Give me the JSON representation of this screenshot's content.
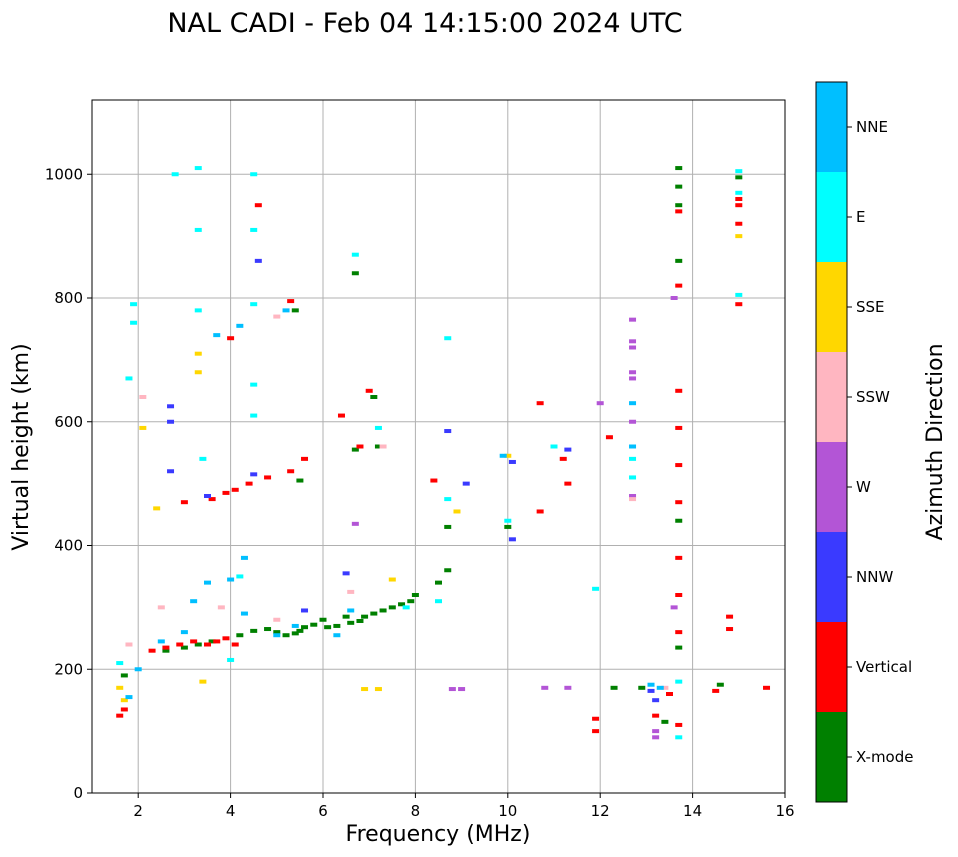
{
  "chart_data": {
    "type": "scatter",
    "title": "NAL CADI - Feb 04 14:15:00 2024 UTC",
    "xlabel": "Frequency (MHz)",
    "ylabel": "Virtual height (km)",
    "xlim": [
      1,
      16
    ],
    "ylim": [
      0,
      1120
    ],
    "xticks": [
      2,
      4,
      6,
      8,
      10,
      12,
      14,
      16
    ],
    "yticks": [
      0,
      200,
      400,
      600,
      800,
      1000
    ],
    "grid": true,
    "colorbar": {
      "label": "Azimuth Direction",
      "categories": [
        {
          "name": "X-mode",
          "color": "#008000"
        },
        {
          "name": "Vertical",
          "color": "#ff0000"
        },
        {
          "name": "NNW",
          "color": "#3a3aff"
        },
        {
          "name": "W",
          "color": "#b355d6"
        },
        {
          "name": "SSW",
          "color": "#ffb6c1"
        },
        {
          "name": "SSE",
          "color": "#ffd700"
        },
        {
          "name": "E",
          "color": "#00ffff"
        },
        {
          "name": "NNE",
          "color": "#00bfff"
        }
      ]
    },
    "series": [
      {
        "name": "X-mode",
        "points": [
          [
            1.7,
            190
          ],
          [
            3.3,
            240
          ],
          [
            4.2,
            255
          ],
          [
            4.5,
            262
          ],
          [
            4.8,
            265
          ],
          [
            5.0,
            260
          ],
          [
            5.2,
            255
          ],
          [
            5.4,
            258
          ],
          [
            5.5,
            262
          ],
          [
            5.6,
            268
          ],
          [
            5.8,
            272
          ],
          [
            6.1,
            268
          ],
          [
            6.3,
            270
          ],
          [
            6.6,
            275
          ],
          [
            6.8,
            278
          ],
          [
            6.9,
            285
          ],
          [
            7.1,
            290
          ],
          [
            7.3,
            295
          ],
          [
            7.5,
            300
          ],
          [
            7.7,
            305
          ],
          [
            7.9,
            310
          ],
          [
            8.0,
            320
          ],
          [
            8.5,
            340
          ],
          [
            8.7,
            360
          ],
          [
            8.7,
            430
          ],
          [
            10.0,
            430
          ],
          [
            5.5,
            505
          ],
          [
            6.7,
            555
          ],
          [
            7.2,
            560
          ],
          [
            7.1,
            640
          ],
          [
            5.4,
            780
          ],
          [
            6.7,
            840
          ],
          [
            12.3,
            170
          ],
          [
            12.9,
            170
          ],
          [
            13.4,
            115
          ],
          [
            13.7,
            235
          ],
          [
            13.7,
            440
          ],
          [
            13.7,
            860
          ],
          [
            13.7,
            950
          ],
          [
            13.7,
            980
          ],
          [
            13.7,
            1010
          ],
          [
            14.6,
            175
          ],
          [
            15.0,
            995
          ],
          [
            2.6,
            230
          ],
          [
            3.0,
            235
          ],
          [
            3.6,
            245
          ],
          [
            6.0,
            280
          ],
          [
            6.5,
            285
          ]
        ]
      },
      {
        "name": "Vertical",
        "points": [
          [
            1.6,
            125
          ],
          [
            1.7,
            135
          ],
          [
            2.3,
            230
          ],
          [
            2.6,
            235
          ],
          [
            2.9,
            240
          ],
          [
            3.2,
            245
          ],
          [
            3.5,
            240
          ],
          [
            3.7,
            245
          ],
          [
            3.9,
            250
          ],
          [
            4.1,
            240
          ],
          [
            3.0,
            470
          ],
          [
            3.6,
            475
          ],
          [
            3.9,
            485
          ],
          [
            4.1,
            490
          ],
          [
            4.4,
            500
          ],
          [
            4.8,
            510
          ],
          [
            5.3,
            520
          ],
          [
            5.6,
            540
          ],
          [
            6.4,
            610
          ],
          [
            6.8,
            560
          ],
          [
            7.0,
            650
          ],
          [
            4.0,
            735
          ],
          [
            5.3,
            795
          ],
          [
            8.4,
            505
          ],
          [
            10.7,
            630
          ],
          [
            10.7,
            455
          ],
          [
            11.2,
            540
          ],
          [
            11.3,
            500
          ],
          [
            11.9,
            120
          ],
          [
            11.9,
            100
          ],
          [
            12.2,
            575
          ],
          [
            13.2,
            125
          ],
          [
            13.5,
            160
          ],
          [
            13.7,
            110
          ],
          [
            13.7,
            260
          ],
          [
            13.7,
            320
          ],
          [
            13.7,
            380
          ],
          [
            13.7,
            470
          ],
          [
            13.7,
            530
          ],
          [
            13.7,
            590
          ],
          [
            13.7,
            650
          ],
          [
            13.7,
            820
          ],
          [
            13.7,
            940
          ],
          [
            14.5,
            165
          ],
          [
            14.8,
            265
          ],
          [
            14.8,
            285
          ],
          [
            15.0,
            790
          ],
          [
            15.0,
            920
          ],
          [
            15.0,
            950
          ],
          [
            15.0,
            960
          ],
          [
            15.6,
            170
          ],
          [
            4.6,
            950
          ]
        ]
      },
      {
        "name": "NNW",
        "points": [
          [
            2.7,
            625
          ],
          [
            2.7,
            600
          ],
          [
            3.5,
            480
          ],
          [
            4.5,
            515
          ],
          [
            5.6,
            295
          ],
          [
            6.5,
            355
          ],
          [
            8.7,
            585
          ],
          [
            9.1,
            500
          ],
          [
            10.1,
            535
          ],
          [
            10.1,
            410
          ],
          [
            11.3,
            555
          ],
          [
            13.2,
            150
          ],
          [
            13.1,
            165
          ],
          [
            4.6,
            860
          ],
          [
            2.7,
            520
          ]
        ]
      },
      {
        "name": "W",
        "points": [
          [
            8.8,
            168
          ],
          [
            9.0,
            168
          ],
          [
            10.8,
            170
          ],
          [
            11.3,
            170
          ],
          [
            12.7,
            765
          ],
          [
            12.7,
            730
          ],
          [
            12.7,
            720
          ],
          [
            12.7,
            680
          ],
          [
            12.7,
            670
          ],
          [
            12.7,
            600
          ],
          [
            12.7,
            480
          ],
          [
            13.2,
            100
          ],
          [
            13.2,
            90
          ],
          [
            13.6,
            300
          ],
          [
            13.6,
            800
          ],
          [
            6.7,
            435
          ],
          [
            12.0,
            630
          ]
        ]
      },
      {
        "name": "SSW",
        "points": [
          [
            1.8,
            240
          ],
          [
            2.1,
            640
          ],
          [
            2.5,
            300
          ],
          [
            3.8,
            300
          ],
          [
            5.0,
            280
          ],
          [
            6.6,
            325
          ],
          [
            7.3,
            560
          ],
          [
            12.7,
            475
          ],
          [
            13.4,
            170
          ],
          [
            5.0,
            770
          ]
        ]
      },
      {
        "name": "SSE",
        "points": [
          [
            1.6,
            170
          ],
          [
            1.7,
            150
          ],
          [
            2.1,
            590
          ],
          [
            2.4,
            460
          ],
          [
            3.3,
            680
          ],
          [
            3.3,
            710
          ],
          [
            3.4,
            180
          ],
          [
            6.9,
            168
          ],
          [
            7.2,
            168
          ],
          [
            8.9,
            455
          ],
          [
            10.0,
            545
          ],
          [
            7.5,
            345
          ],
          [
            15.0,
            900
          ]
        ]
      },
      {
        "name": "E",
        "points": [
          [
            1.6,
            210
          ],
          [
            1.9,
            790
          ],
          [
            1.9,
            760
          ],
          [
            1.8,
            670
          ],
          [
            2.8,
            1000
          ],
          [
            3.3,
            1010
          ],
          [
            3.3,
            910
          ],
          [
            3.3,
            780
          ],
          [
            3.4,
            540
          ],
          [
            4.5,
            1000
          ],
          [
            4.5,
            910
          ],
          [
            4.5,
            790
          ],
          [
            4.5,
            660
          ],
          [
            4.5,
            610
          ],
          [
            4.2,
            350
          ],
          [
            6.7,
            870
          ],
          [
            7.2,
            590
          ],
          [
            7.8,
            300
          ],
          [
            8.5,
            310
          ],
          [
            8.7,
            735
          ],
          [
            8.7,
            475
          ],
          [
            10.0,
            440
          ],
          [
            11.0,
            560
          ],
          [
            12.7,
            540
          ],
          [
            12.7,
            510
          ],
          [
            13.7,
            90
          ],
          [
            13.7,
            180
          ],
          [
            15.0,
            1005
          ],
          [
            15.0,
            970
          ],
          [
            15.0,
            805
          ],
          [
            11.9,
            330
          ],
          [
            4.0,
            215
          ]
        ]
      },
      {
        "name": "NNE",
        "points": [
          [
            1.8,
            155
          ],
          [
            2.0,
            200
          ],
          [
            2.5,
            245
          ],
          [
            3.0,
            260
          ],
          [
            3.2,
            310
          ],
          [
            3.5,
            340
          ],
          [
            4.0,
            345
          ],
          [
            4.3,
            380
          ],
          [
            4.3,
            290
          ],
          [
            5.0,
            255
          ],
          [
            5.4,
            270
          ],
          [
            6.3,
            255
          ],
          [
            6.6,
            295
          ],
          [
            3.7,
            740
          ],
          [
            4.2,
            755
          ],
          [
            5.2,
            780
          ],
          [
            12.7,
            630
          ],
          [
            12.7,
            560
          ],
          [
            13.1,
            175
          ],
          [
            13.3,
            170
          ],
          [
            9.9,
            545
          ]
        ]
      }
    ]
  }
}
